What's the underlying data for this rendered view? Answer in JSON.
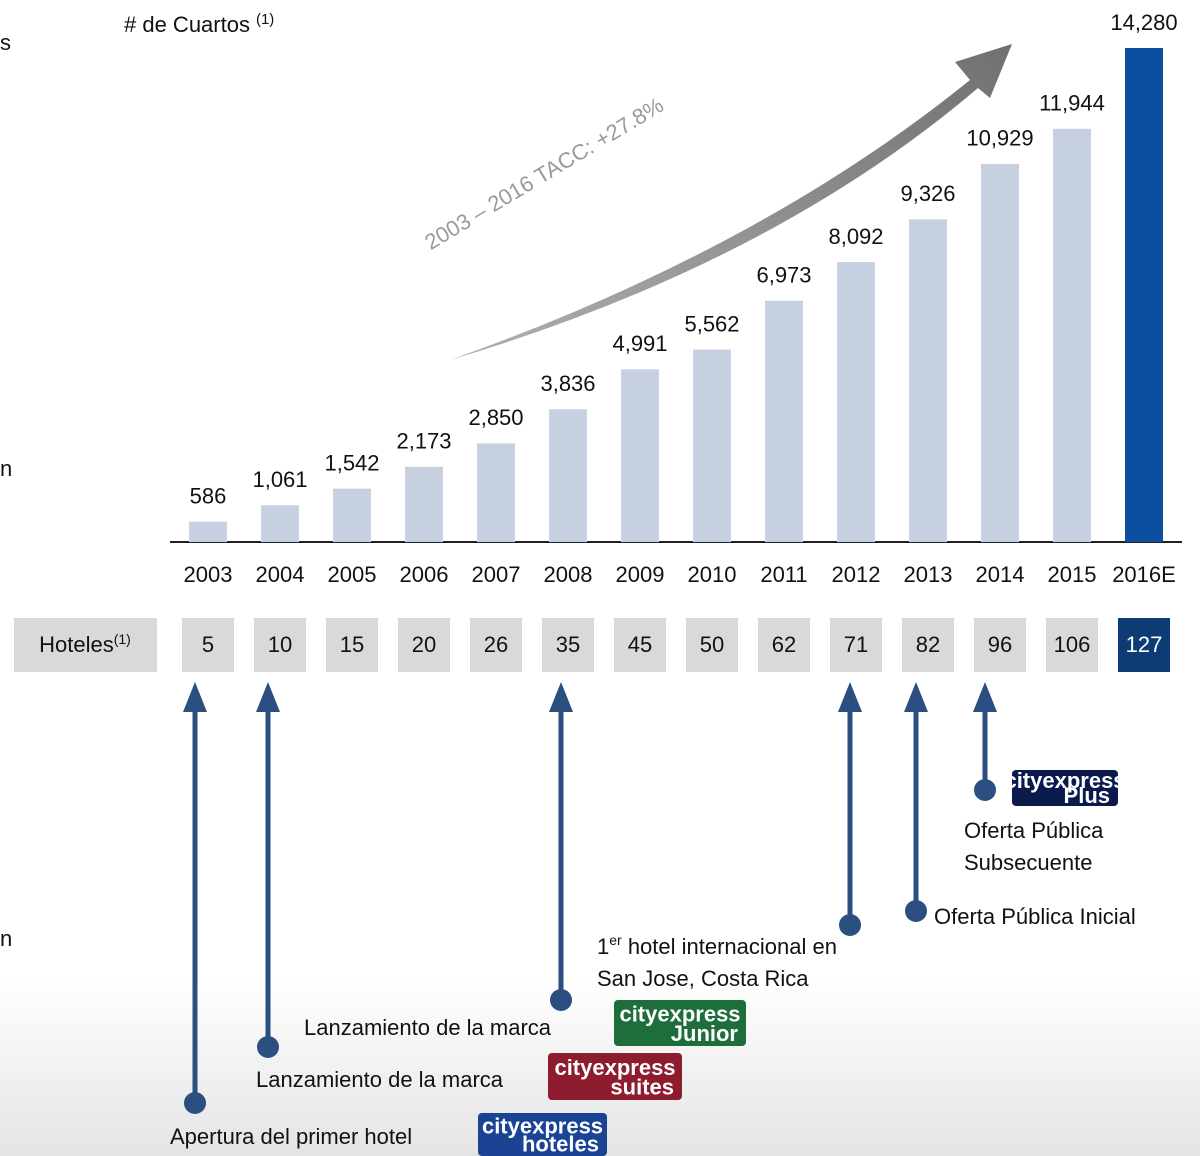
{
  "chart_data": {
    "type": "bar",
    "title": "# de Cuartos",
    "title_note": "(1)",
    "categories": [
      "2003",
      "2004",
      "2005",
      "2006",
      "2007",
      "2008",
      "2009",
      "2010",
      "2011",
      "2012",
      "2013",
      "2014",
      "2015",
      "2016E"
    ],
    "values": [
      586,
      1061,
      1542,
      2173,
      2850,
      3836,
      4991,
      5562,
      6973,
      8092,
      9326,
      10929,
      11944,
      14280
    ],
    "value_labels": [
      "586",
      "1,061",
      "1,542",
      "2,173",
      "2,850",
      "3,836",
      "4,991",
      "5,562",
      "6,973",
      "8,092",
      "9,326",
      "10,929",
      "11,944",
      "14,280"
    ],
    "colors": [
      "#c7d0e1",
      "#c7d0e1",
      "#c7d0e1",
      "#c7d0e1",
      "#c7d0e1",
      "#c7d0e1",
      "#c7d0e1",
      "#c7d0e1",
      "#c7d0e1",
      "#c7d0e1",
      "#c7d0e1",
      "#c7d0e1",
      "#c7d0e1",
      "#0b4f9f"
    ],
    "annotation": "2003 – 2016 TACC: +27.8%"
  },
  "hotels": {
    "label": "Hoteles",
    "note": "(1)",
    "values": [
      "5",
      "10",
      "15",
      "20",
      "26",
      "35",
      "45",
      "50",
      "62",
      "71",
      "82",
      "96",
      "106",
      "127"
    ]
  },
  "events": [
    {
      "label": "Apertura del primer hotel",
      "logo": "cityexpress",
      "logo_sub": "hoteles"
    },
    {
      "label": "Lanzamiento de la marca",
      "logo": "cityexpress",
      "logo_sub": "suites"
    },
    {
      "label": "Lanzamiento de la marca",
      "logo": "cityexpress",
      "logo_sub": "Junior"
    },
    {
      "label_pre": "1",
      "label_sup": "er",
      "label": " hotel internacional en",
      "label2": "San Jose, Costa Rica"
    },
    {
      "label": "Oferta Pública Inicial"
    },
    {
      "label": "Oferta Pública",
      "label2": "Subsecuente",
      "logo": "cityexpress",
      "logo_sub": "Plus"
    }
  ],
  "left_fragments": [
    "s",
    "n",
    "n"
  ]
}
